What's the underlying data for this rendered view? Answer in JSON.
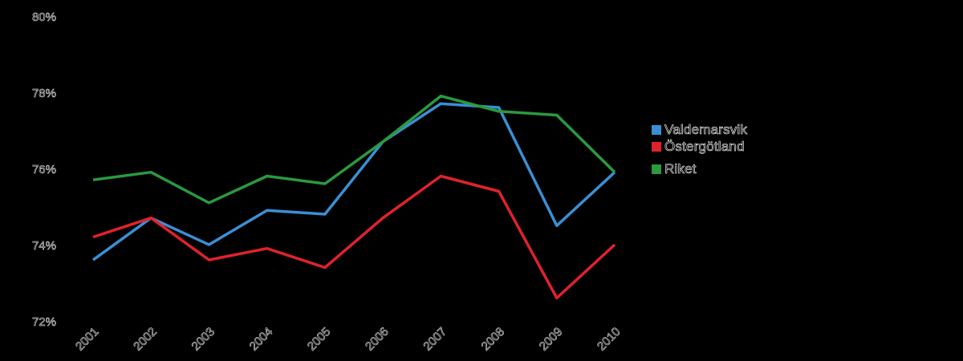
{
  "chart_data": {
    "type": "line",
    "categories": [
      "2001",
      "2002",
      "2003",
      "2004",
      "2005",
      "2006",
      "2007",
      "2008",
      "2009",
      "2010"
    ],
    "series": [
      {
        "name": "Valdemarsvik",
        "color": "#3a8fd4",
        "values": [
          73.6,
          74.7,
          74.0,
          74.9,
          74.8,
          76.7,
          77.7,
          77.6,
          74.5,
          75.9
        ]
      },
      {
        "name": "Östergötland",
        "color": "#e0222b",
        "values": [
          74.2,
          74.7,
          73.6,
          73.9,
          73.4,
          74.7,
          75.8,
          75.4,
          72.6,
          74.0
        ]
      },
      {
        "name": "Riket",
        "color": "#2a9a3e",
        "values": [
          75.7,
          75.9,
          75.1,
          75.8,
          75.6,
          76.7,
          77.9,
          77.5,
          77.4,
          75.9
        ]
      }
    ],
    "y_ticks": [
      "72%",
      "74%",
      "76%",
      "78%",
      "80%"
    ],
    "ylim": [
      72,
      80
    ],
    "grid": false,
    "legend_position": "right"
  }
}
